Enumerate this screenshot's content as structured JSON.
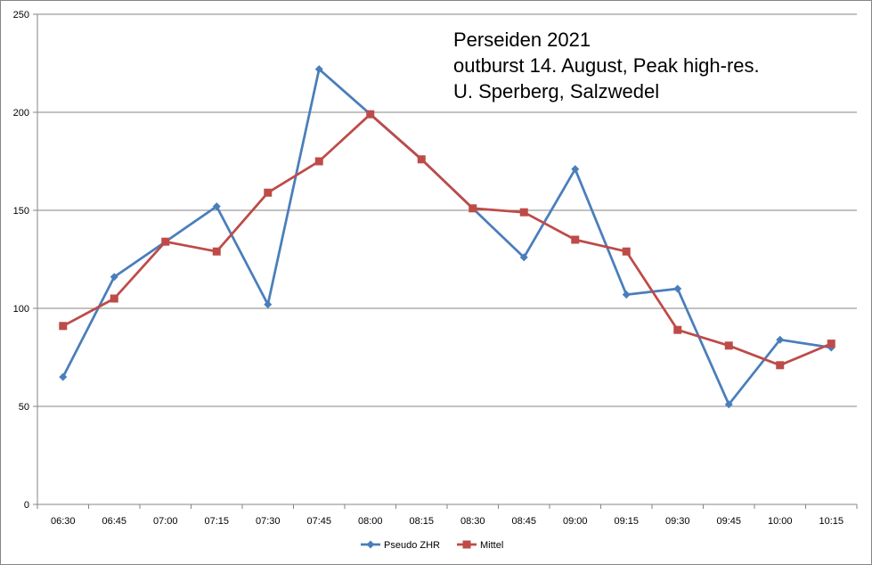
{
  "chart_data": {
    "type": "line",
    "title_lines": [
      "Perseiden 2021",
      "outburst 14. August, Peak high-res.",
      "U. Sperberg, Salzwedel"
    ],
    "xlabel": "",
    "ylabel": "",
    "categories": [
      "06:30",
      "06:45",
      "07:00",
      "07:15",
      "07:30",
      "07:45",
      "08:00",
      "08:15",
      "08:30",
      "08:45",
      "09:00",
      "09:15",
      "09:30",
      "09:45",
      "10:00",
      "10:15"
    ],
    "ylim": [
      0,
      250
    ],
    "yticks": [
      0,
      50,
      100,
      150,
      200,
      250
    ],
    "grid": "horizontal",
    "legend_position": "bottom",
    "series": [
      {
        "name": "Pseudo ZHR",
        "color": "#4a7ebb",
        "marker": "diamond",
        "values": [
          65,
          116,
          134,
          152,
          102,
          222,
          199,
          176,
          151,
          126,
          171,
          107,
          110,
          51,
          84,
          80
        ]
      },
      {
        "name": "Mittel",
        "color": "#be4b48",
        "marker": "square",
        "values": [
          91,
          105,
          134,
          129,
          159,
          175,
          199,
          176,
          151,
          149,
          135,
          129,
          89,
          81,
          71,
          82
        ]
      }
    ]
  }
}
